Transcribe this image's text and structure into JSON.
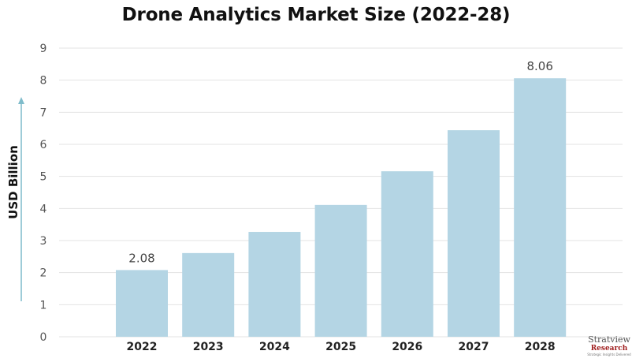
{
  "chart_data": {
    "type": "bar",
    "title": "Drone Analytics Market Size (2022-28)",
    "xlabel": "",
    "ylabel": "USD Billion",
    "categories": [
      "2022",
      "2023",
      "2024",
      "2025",
      "2026",
      "2027",
      "2028"
    ],
    "values": [
      2.08,
      2.61,
      3.27,
      4.11,
      5.16,
      6.44,
      8.06
    ],
    "data_labels": {
      "0": "2.08",
      "6": "8.06"
    },
    "ylim": [
      0,
      9
    ],
    "yticks": [
      "0",
      "1",
      "2",
      "3",
      "4",
      "5",
      "6",
      "7",
      "8",
      "9"
    ],
    "grid": true,
    "bar_color": "#b4d5e4",
    "axis_arrow_color": "#7fbccb"
  },
  "logo": {
    "name": "Stratview",
    "subname": "Research",
    "tagline": "Strategic Insights Delivered"
  }
}
